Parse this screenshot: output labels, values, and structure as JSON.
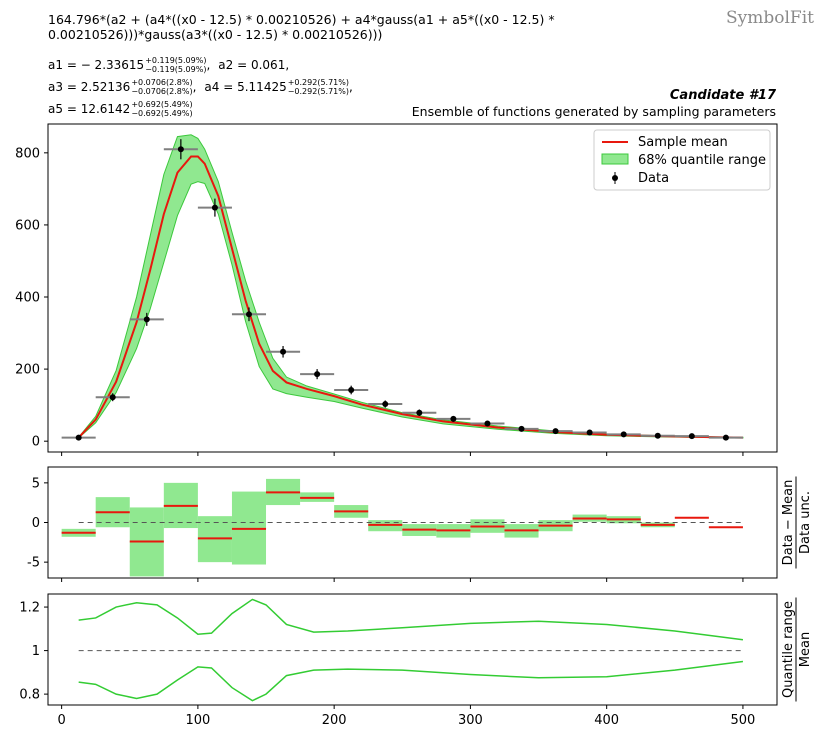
{
  "header": {
    "formula_line1": "164.796*(a2 + (a4*((x0 - 12.5) * 0.00210526) + a4*gauss(a1 + a5*((x0 - 12.5) *",
    "formula_line2": "0.00210526)))*gauss(a3*((x0 - 12.5) * 0.00210526)))",
    "brand": "SymbolFit",
    "candidate": "Candidate #17",
    "subtitle": "Ensemble of functions generated by sampling parameters"
  },
  "params": [
    {
      "name": "a1",
      "value": "− 2.33615",
      "up": "+0.119(5.09%)",
      "down": "−0.119(5.09%)"
    },
    {
      "name": "a2",
      "value": "0.061",
      "up": "",
      "down": ""
    },
    {
      "name": "a3",
      "value": "2.52136",
      "up": "+0.0706(2.8%)",
      "down": "−0.0706(2.8%)"
    },
    {
      "name": "a4",
      "value": "5.11425",
      "up": "+0.292(5.71%)",
      "down": "−0.292(5.71%)"
    },
    {
      "name": "a5",
      "value": "12.6142",
      "up": "+0.692(5.49%)",
      "down": "−0.692(5.49%)"
    }
  ],
  "colors": {
    "mean": "#e8180e",
    "band": "#90e890",
    "band_edge": "#3cc83c",
    "data": "#000000",
    "xerr": "#7f7f7f",
    "ratio_line": "#33cc33"
  },
  "chart_data": [
    {
      "type": "line",
      "panel": "main",
      "legend": [
        "Sample mean",
        "68% quantile range",
        "Data"
      ],
      "legend_position": "top-right",
      "xlim": [
        -10,
        525
      ],
      "ylim": [
        -30,
        880
      ],
      "yticks": [
        0,
        200,
        400,
        600,
        800
      ],
      "data_points": [
        {
          "x": 12.5,
          "y": 10,
          "xerr": 12.5,
          "yerr": 3
        },
        {
          "x": 37.5,
          "y": 122,
          "xerr": 12.5,
          "yerr": 11
        },
        {
          "x": 62.5,
          "y": 338,
          "xerr": 12.5,
          "yerr": 18
        },
        {
          "x": 87.5,
          "y": 810,
          "xerr": 12.5,
          "yerr": 28
        },
        {
          "x": 112.5,
          "y": 648,
          "xerr": 12.5,
          "yerr": 25
        },
        {
          "x": 137.5,
          "y": 352,
          "xerr": 12.5,
          "yerr": 19
        },
        {
          "x": 162.5,
          "y": 248,
          "xerr": 12.5,
          "yerr": 16
        },
        {
          "x": 187.5,
          "y": 186,
          "xerr": 12.5,
          "yerr": 14
        },
        {
          "x": 212.5,
          "y": 142,
          "xerr": 12.5,
          "yerr": 12
        },
        {
          "x": 237.5,
          "y": 103,
          "xerr": 12.5,
          "yerr": 10
        },
        {
          "x": 262.5,
          "y": 79,
          "xerr": 12.5,
          "yerr": 9
        },
        {
          "x": 287.5,
          "y": 62,
          "xerr": 12.5,
          "yerr": 8
        },
        {
          "x": 312.5,
          "y": 49,
          "xerr": 12.5,
          "yerr": 7
        },
        {
          "x": 337.5,
          "y": 34,
          "xerr": 12.5,
          "yerr": 6
        },
        {
          "x": 362.5,
          "y": 28,
          "xerr": 12.5,
          "yerr": 5
        },
        {
          "x": 387.5,
          "y": 24,
          "xerr": 12.5,
          "yerr": 5
        },
        {
          "x": 412.5,
          "y": 19,
          "xerr": 12.5,
          "yerr": 4
        },
        {
          "x": 437.5,
          "y": 15,
          "xerr": 12.5,
          "yerr": 4
        },
        {
          "x": 462.5,
          "y": 14,
          "xerr": 12.5,
          "yerr": 4
        },
        {
          "x": 487.5,
          "y": 10,
          "xerr": 12.5,
          "yerr": 3
        }
      ],
      "mean_curve": {
        "x": [
          12.5,
          25,
          40,
          55,
          65,
          75,
          85,
          95,
          100,
          105,
          115,
          125,
          135,
          145,
          155,
          165,
          180,
          200,
          220,
          250,
          280,
          320,
          360,
          400,
          440,
          480,
          500
        ],
        "y": [
          10,
          60,
          165,
          330,
          475,
          630,
          745,
          790,
          790,
          770,
          680,
          535,
          390,
          270,
          195,
          163,
          145,
          125,
          102,
          75,
          55,
          38,
          26,
          18,
          14,
          11,
          10
        ]
      },
      "band_upper": [
        11,
        69,
        196,
        400,
        570,
        740,
        845,
        850,
        840,
        810,
        720,
        580,
        445,
        330,
        230,
        178,
        153,
        131,
        108,
        79,
        59,
        42,
        29,
        20,
        15,
        12,
        11
      ],
      "band_lower": [
        9,
        51,
        135,
        257,
        367,
        496,
        626,
        713,
        720,
        715,
        630,
        490,
        332,
        207,
        145,
        132,
        122,
        110,
        92,
        67,
        48,
        33,
        22,
        15,
        12,
        10,
        9
      ]
    },
    {
      "type": "bar",
      "panel": "pull",
      "ylabel": "Data − Mean / Data unc.",
      "ylim": [
        -7,
        7
      ],
      "yticks": [
        -5,
        0,
        5
      ],
      "x": [
        12.5,
        37.5,
        62.5,
        87.5,
        112.5,
        137.5,
        162.5,
        187.5,
        212.5,
        237.5,
        262.5,
        287.5,
        312.5,
        337.5,
        362.5,
        387.5,
        412.5,
        437.5,
        462.5,
        487.5
      ],
      "values": [
        -1.3,
        1.3,
        -2.4,
        2.1,
        -2.0,
        -0.8,
        3.8,
        3.1,
        1.4,
        -0.3,
        -0.9,
        -1.0,
        -0.5,
        -1.0,
        -0.4,
        0.5,
        0.4,
        -0.3,
        0.6,
        -0.6
      ],
      "band_low": [
        -1.8,
        -0.6,
        -6.8,
        -0.7,
        -5.0,
        -5.3,
        2.2,
        2.6,
        0.6,
        -1.1,
        -1.7,
        -1.9,
        -1.3,
        -1.9,
        -1.1,
        0.1,
        -0.1,
        -0.6,
        0.6,
        -0.6
      ],
      "band_high": [
        -0.8,
        3.2,
        1.9,
        5.0,
        0.8,
        3.9,
        5.5,
        3.8,
        2.2,
        0.3,
        -0.2,
        -0.2,
        0.4,
        -0.2,
        0.3,
        1.0,
        0.8,
        0.0,
        0.6,
        -0.6
      ]
    },
    {
      "type": "line",
      "panel": "ratio",
      "ylabel": "Quantile range / Mean",
      "xlim": [
        -10,
        525
      ],
      "ylim": [
        0.75,
        1.26
      ],
      "yticks": [
        0.8,
        1,
        1.2
      ],
      "xticks": [
        0,
        100,
        200,
        300,
        400,
        500
      ],
      "x": [
        12.5,
        25,
        40,
        55,
        70,
        85,
        100,
        110,
        125,
        140,
        150,
        165,
        185,
        210,
        250,
        300,
        350,
        400,
        450,
        500
      ],
      "upper": [
        1.14,
        1.15,
        1.2,
        1.22,
        1.21,
        1.15,
        1.075,
        1.08,
        1.17,
        1.235,
        1.21,
        1.12,
        1.085,
        1.09,
        1.105,
        1.125,
        1.135,
        1.12,
        1.09,
        1.05
      ],
      "lower": [
        0.855,
        0.845,
        0.8,
        0.78,
        0.8,
        0.865,
        0.925,
        0.92,
        0.83,
        0.77,
        0.8,
        0.885,
        0.91,
        0.915,
        0.91,
        0.89,
        0.875,
        0.88,
        0.91,
        0.95
      ]
    }
  ]
}
